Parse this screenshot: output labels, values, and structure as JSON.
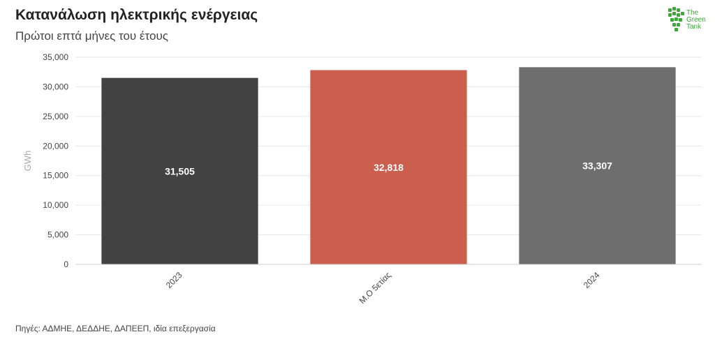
{
  "header": {
    "title": "Κατανάλωση ηλεκτρικής ενέργειας",
    "subtitle": "Πρώτοι επτά μήνες του έτους"
  },
  "logo": {
    "line1": "The",
    "line2": "Green",
    "line3": "Tank",
    "color": "#3aa935"
  },
  "footer": {
    "source": "Πηγές: ΑΔΜΗΕ, ΔΕΔΔΗΕ, ΔΑΠΕΕΠ, ιδία επεξεργασία"
  },
  "chart_data": {
    "type": "bar",
    "categories": [
      "2023",
      "Μ.Ο 5ετίας",
      "2024"
    ],
    "values": [
      31505,
      32818,
      33307
    ],
    "value_labels": [
      "31,505",
      "32,818",
      "33,307"
    ],
    "colors": [
      "#424242",
      "#cc5e4d",
      "#6e6e6e"
    ],
    "ylabel": "GWh",
    "ylim": [
      0,
      35000
    ],
    "yticks": [
      "0",
      "5,000",
      "10,000",
      "15,000",
      "20,000",
      "25,000",
      "30,000",
      "35,000"
    ],
    "ytick_values": [
      0,
      5000,
      10000,
      15000,
      20000,
      25000,
      30000,
      35000
    ],
    "grid": true
  }
}
